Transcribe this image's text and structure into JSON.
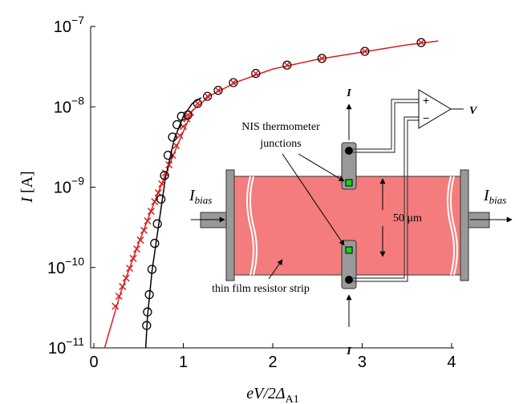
{
  "chart_data": {
    "type": "scatter",
    "xlabel": {
      "main": "eV/2Δ",
      "sub": "A1"
    },
    "ylabel": {
      "main": "I",
      "rest": " [A]"
    },
    "xlim": [
      -0.036,
      4.027
    ],
    "ylim": [
      1e-11,
      1e-07
    ],
    "log_y": true,
    "xticks": [
      0,
      1,
      2,
      3,
      4
    ],
    "yticks": [
      {
        "value": 1e-07,
        "label": "10−7"
      },
      {
        "value": 1e-08,
        "label": "10−8"
      },
      {
        "value": 1e-09,
        "label": "10−9"
      },
      {
        "value": 1e-10,
        "label": "10−10"
      },
      {
        "value": 1e-11,
        "label": "10−11"
      }
    ],
    "series": [
      {
        "color": "#d62020",
        "marker": "line",
        "x": [
          0.12,
          0.3,
          0.5,
          0.7,
          0.9,
          1.1,
          1.3,
          1.6,
          2.0,
          2.5,
          3.0,
          3.5,
          3.85
        ],
        "values": [
          1e-11,
          4.9e-11,
          2e-10,
          7.6e-10,
          2.7e-09,
          8.9e-09,
          1.38e-08,
          2.04e-08,
          2.95e-08,
          3.9e-08,
          4.8e-08,
          5.9e-08,
          6.6e-08
        ]
      },
      {
        "color": "#000000",
        "marker": "line",
        "x": [
          0.58,
          0.6,
          0.65,
          0.7,
          0.8,
          0.9,
          1.0,
          1.1,
          1.2
        ],
        "values": [
          1e-11,
          2.5e-11,
          9e-11,
          2.2e-10,
          1.3e-09,
          4e-09,
          7.6e-09,
          1.1e-08,
          1.3e-08
        ]
      },
      {
        "color": "#d62020",
        "marker": "x",
        "x": [
          0.24,
          0.28,
          0.32,
          0.36,
          0.4,
          0.44,
          0.48,
          0.52,
          0.56,
          0.6,
          0.64,
          0.68,
          0.72,
          0.76,
          0.8,
          0.84,
          0.88,
          0.92,
          0.96,
          1.0,
          1.04,
          1.08
        ],
        "values": [
          3.3e-11,
          4.4e-11,
          5.8e-11,
          7.4e-11,
          9.8e-11,
          1.3e-10,
          1.7e-10,
          2.2e-10,
          2.9e-10,
          3.8e-10,
          5e-10,
          6.6e-10,
          8.5e-10,
          1.1e-09,
          1.5e-09,
          1.9e-09,
          2.5e-09,
          3.3e-09,
          4.4e-09,
          5.7e-09,
          7.1e-09,
          8.5e-09
        ]
      },
      {
        "color": "#000000",
        "marker": "o",
        "x": [
          0.59,
          0.6,
          0.62,
          0.65,
          0.68,
          0.71,
          0.75,
          0.79,
          0.83,
          0.88,
          0.93,
          0.98
        ],
        "values": [
          1.9e-11,
          2.8e-11,
          4.6e-11,
          9.5e-11,
          2e-10,
          3.5e-10,
          7.1e-10,
          1.4e-09,
          2.5e-09,
          4.2e-09,
          6e-09,
          7.6e-09
        ]
      },
      {
        "color": "#d62020",
        "marker": "circle-x",
        "x": [
          1.05,
          1.16,
          1.27,
          1.39,
          1.56,
          1.81,
          2.16,
          2.55,
          3.03,
          3.66
        ],
        "values": [
          7.9e-09,
          1.1e-08,
          1.35e-08,
          1.6e-08,
          2e-08,
          2.6e-08,
          3.3e-08,
          4e-08,
          4.9e-08,
          6.3e-08
        ]
      }
    ]
  },
  "inset": {
    "current_top": "I",
    "current_bottom": "I",
    "voltage": "V",
    "plus": "+",
    "minus": "−",
    "junction_label": [
      "NIS thermometer",
      "junctions"
    ],
    "bias_left": {
      "main": "I",
      "sub": "bias"
    },
    "bias_right": {
      "main": "I",
      "sub": "bias"
    },
    "width": "50 μm",
    "strip_label": "thin film resistor strip"
  }
}
